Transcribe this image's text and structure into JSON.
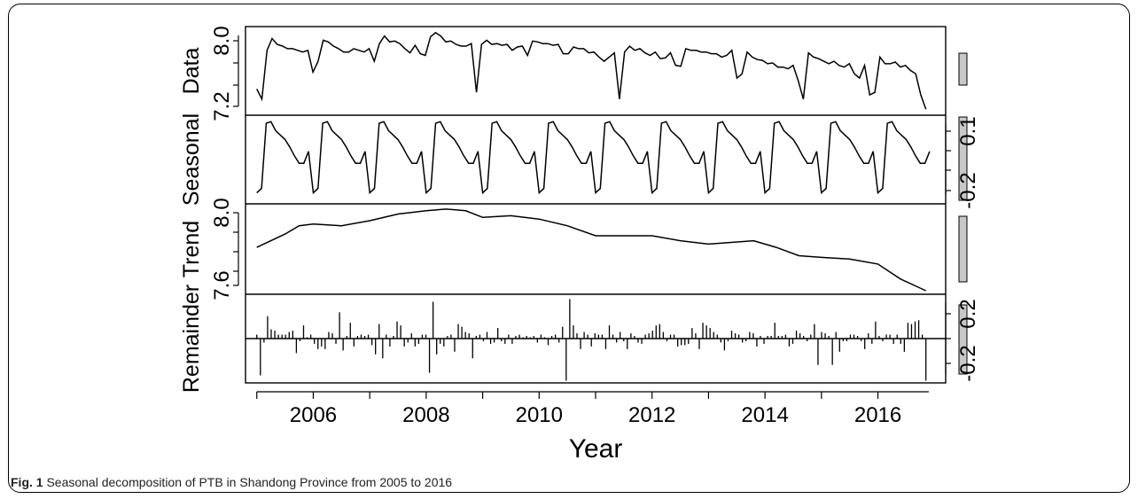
{
  "chart_data": {
    "type": "line",
    "xlabel": "Year",
    "x_ticks": [
      "2006",
      "2008",
      "2010",
      "2012",
      "2014",
      "2016"
    ],
    "x_range": [
      2004.8,
      2017.2
    ],
    "x_start": 2005.0,
    "panels": [
      {
        "name": "Data",
        "kind": "line",
        "ylim": [
          7.15,
          8.12
        ],
        "y_ticks": [
          "7.2",
          "8.0"
        ],
        "axis_side": "left",
        "values": [
          7.42,
          7.3,
          7.88,
          8.02,
          7.95,
          7.93,
          7.9,
          7.9,
          7.88,
          7.86,
          7.88,
          7.62,
          7.75,
          8.0,
          7.98,
          7.93,
          7.9,
          7.86,
          7.86,
          7.9,
          7.88,
          7.86,
          7.9,
          7.75,
          7.96,
          8.05,
          7.98,
          7.99,
          7.96,
          7.9,
          7.85,
          7.94,
          7.84,
          7.82,
          8.04,
          8.09,
          8.05,
          7.98,
          7.99,
          7.95,
          7.93,
          7.93,
          7.96,
          7.38,
          7.95,
          8.0,
          7.95,
          7.96,
          7.94,
          7.95,
          7.88,
          7.92,
          7.93,
          7.82,
          7.99,
          7.98,
          7.96,
          7.96,
          7.94,
          7.95,
          7.84,
          7.84,
          7.92,
          7.9,
          7.9,
          7.85,
          7.86,
          7.8,
          7.75,
          7.8,
          7.85,
          7.3,
          7.86,
          7.93,
          7.88,
          7.9,
          7.85,
          7.82,
          7.86,
          7.78,
          7.79,
          7.85,
          7.7,
          7.69,
          7.9,
          7.88,
          7.88,
          7.86,
          7.86,
          7.84,
          7.84,
          7.8,
          7.82,
          7.88,
          7.55,
          7.6,
          7.86,
          7.8,
          7.77,
          7.76,
          7.72,
          7.73,
          7.68,
          7.68,
          7.66,
          7.7,
          7.52,
          7.3,
          7.85,
          7.8,
          7.78,
          7.75,
          7.72,
          7.75,
          7.7,
          7.68,
          7.72,
          7.6,
          7.55,
          7.7,
          7.35,
          7.38,
          7.8,
          7.72,
          7.72,
          7.74,
          7.68,
          7.7,
          7.64,
          7.6,
          7.35,
          7.18
        ]
      },
      {
        "name": "Seasonal",
        "kind": "line",
        "ylim": [
          -0.33,
          0.22
        ],
        "y_ticks": [
          "0.1",
          "-0.2"
        ],
        "axis_side": "right",
        "values": [
          -0.28,
          -0.25,
          0.19,
          0.2,
          0.14,
          0.11,
          0.08,
          0.03,
          -0.03,
          -0.08,
          -0.08,
          0.0,
          -0.28
        ]
      },
      {
        "name": "Trend",
        "kind": "line",
        "ylim": [
          7.53,
          8.03
        ],
        "y_ticks": [
          "8.0",
          "7.6"
        ],
        "axis_side": "left",
        "points": [
          [
            2005.0,
            7.79
          ],
          [
            2005.5,
            7.87
          ],
          [
            2005.75,
            7.92
          ],
          [
            2006.0,
            7.93
          ],
          [
            2006.5,
            7.92
          ],
          [
            2007.0,
            7.95
          ],
          [
            2007.5,
            7.99
          ],
          [
            2008.0,
            8.01
          ],
          [
            2008.35,
            8.02
          ],
          [
            2008.7,
            8.01
          ],
          [
            2009.0,
            7.97
          ],
          [
            2009.5,
            7.98
          ],
          [
            2010.0,
            7.96
          ],
          [
            2010.5,
            7.92
          ],
          [
            2011.0,
            7.86
          ],
          [
            2011.5,
            7.86
          ],
          [
            2012.0,
            7.86
          ],
          [
            2012.5,
            7.83
          ],
          [
            2013.0,
            7.81
          ],
          [
            2013.4,
            7.82
          ],
          [
            2013.8,
            7.83
          ],
          [
            2014.2,
            7.79
          ],
          [
            2014.6,
            7.74
          ],
          [
            2015.0,
            7.73
          ],
          [
            2015.5,
            7.72
          ],
          [
            2016.0,
            7.69
          ],
          [
            2016.4,
            7.6
          ],
          [
            2016.85,
            7.53
          ]
        ]
      },
      {
        "name": "Remainder",
        "kind": "bars",
        "ylim": [
          -0.31,
          0.31
        ],
        "y_ticks": [
          "0.2",
          "-0.2"
        ],
        "axis_side": "right",
        "values": [
          0.03,
          -0.28,
          -0.03,
          0.17,
          0.07,
          0.06,
          0.03,
          0.03,
          0.03,
          0.05,
          0.06,
          -0.11,
          -0.02,
          0.1,
          0.01,
          0.03,
          -0.04,
          -0.08,
          -0.06,
          -0.08,
          0.05,
          0.04,
          -0.04,
          0.2,
          -0.09,
          0.02,
          0.12,
          -0.06,
          0.02,
          0.03,
          0.02,
          0.03,
          -0.05,
          -0.12,
          0.11,
          -0.15,
          0.03,
          -0.06,
          0.02,
          0.13,
          0.1,
          -0.06,
          -0.03,
          0.04,
          -0.06,
          -0.04,
          0.03,
          0.03,
          -0.26,
          0.28,
          -0.12,
          -0.04,
          -0.06,
          0.02,
          0.03,
          -0.1,
          0.11,
          0.09,
          0.05,
          0.04,
          -0.15,
          0.02,
          0.03,
          -0.02,
          0.05,
          -0.04,
          -0.03,
          0.08,
          -0.02,
          -0.04,
          0.03,
          -0.04,
          0.02,
          0.03,
          0.01,
          0.02,
          0.01,
          0.02,
          -0.03,
          0.03,
          0.01,
          -0.05,
          0.02,
          0.03,
          -0.03,
          0.09,
          -0.32,
          0.3,
          0.1,
          0.04,
          -0.08,
          0.05,
          0.03,
          -0.06,
          0.04,
          0.03,
          0.03,
          -0.08,
          0.1,
          0.03,
          -0.03,
          0.05,
          -0.02,
          -0.08,
          0.04,
          0.02,
          -0.03,
          -0.04,
          0.03,
          0.04,
          0.06,
          0.1,
          0.11,
          0.05,
          -0.02,
          0.03,
          0.03,
          -0.06,
          -0.05,
          -0.05,
          -0.04,
          0.08,
          0.04,
          -0.08,
          0.12,
          0.1,
          0.08,
          0.05,
          0.03,
          -0.03,
          -0.09,
          -0.02,
          0.06,
          0.04,
          0.03,
          -0.03,
          -0.02,
          0.05,
          0.04,
          -0.06,
          0.02,
          -0.04,
          0.02,
          0.02,
          0.12,
          0.02,
          0.02,
          0.03,
          -0.06,
          -0.04,
          0.06,
          0.04,
          0.02,
          -0.02,
          0.03,
          0.11,
          -0.2,
          0.05,
          0.04,
          0.02,
          -0.2,
          0.05,
          -0.1,
          -0.02,
          -0.02,
          0.03,
          0.03,
          0.02,
          -0.02,
          -0.08,
          0.04,
          -0.04,
          0.13,
          0.02,
          -0.02,
          0.03,
          0.03,
          -0.04,
          0.03,
          -0.04,
          -0.1,
          0.12,
          0.11,
          0.13,
          0.14,
          0.03,
          -0.32
        ]
      }
    ]
  },
  "caption": {
    "label": "Fig. 1",
    "text": " Seasonal decomposition of PTB in Shandong Province from 2005 to 2016"
  }
}
